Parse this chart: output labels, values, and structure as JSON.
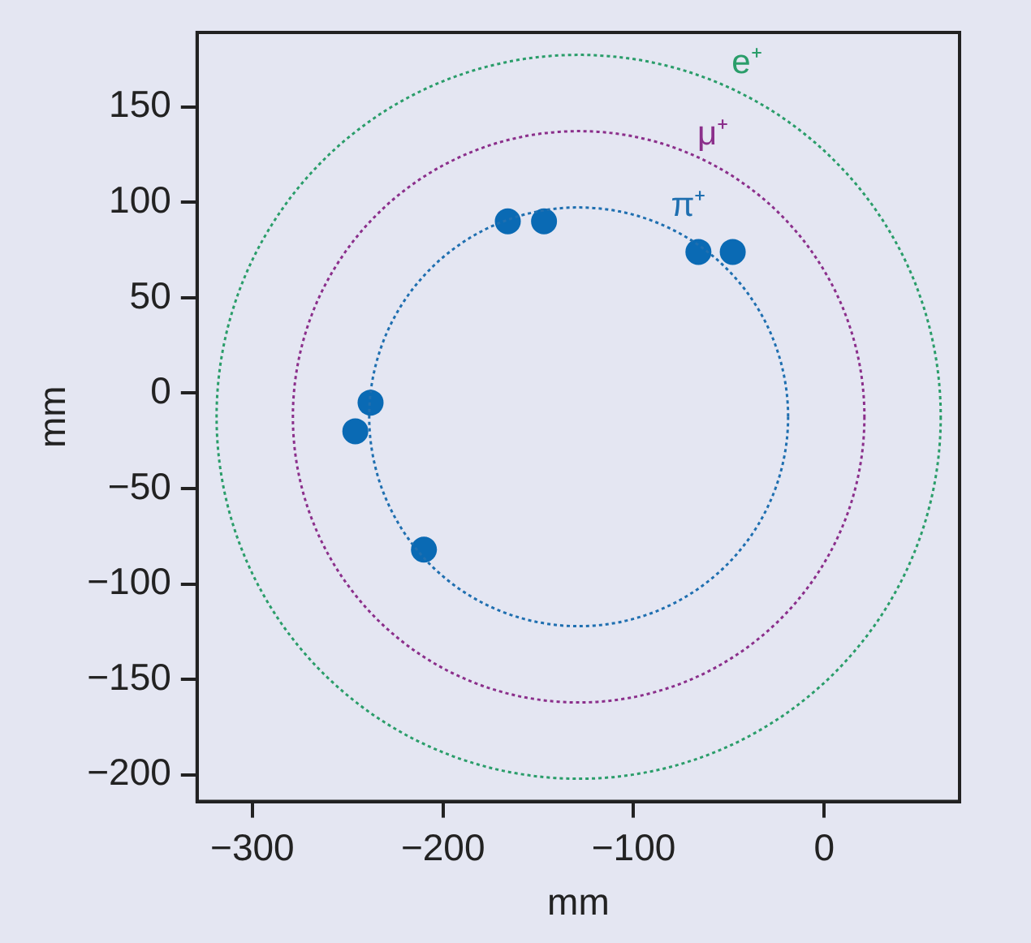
{
  "chart_data": {
    "type": "scatter",
    "xlabel": "mm",
    "ylabel": "mm",
    "xlim": [
      -329,
      71
    ],
    "ylim": [
      -214,
      189
    ],
    "xticks": [
      -300,
      -200,
      -100,
      0
    ],
    "yticks": [
      -200,
      -150,
      -100,
      -50,
      0,
      50,
      100,
      150
    ],
    "marker": "circle",
    "annotations": [
      "e⁺",
      "μ⁺",
      "π⁺"
    ],
    "series": [
      {
        "color": "#0a6ab4",
        "x": [
          -166,
          -147,
          -66,
          -48,
          -238,
          -246,
          -210
        ],
        "values": [
          90,
          90,
          74,
          74,
          -5,
          -20,
          -82
        ]
      }
    ]
  }
}
